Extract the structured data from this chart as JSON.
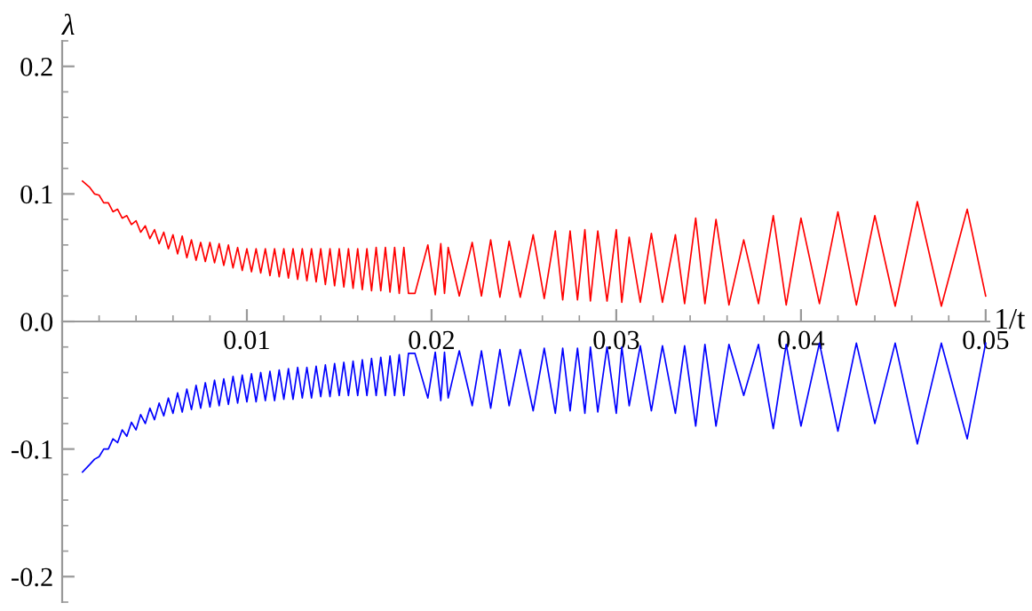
{
  "chart_data": {
    "type": "line",
    "xlabel": "1/t",
    "ylabel": "λ",
    "x": [
      0.0011,
      0.0015,
      0.00175,
      0.002,
      0.00225,
      0.0025,
      0.00275,
      0.003,
      0.00325,
      0.0035,
      0.00375,
      0.004,
      0.00425,
      0.0045,
      0.00475,
      0.005,
      0.00525,
      0.0055,
      0.00575,
      0.006,
      0.00625,
      0.0065,
      0.00675,
      0.007,
      0.00725,
      0.0075,
      0.00775,
      0.008,
      0.00825,
      0.0085,
      0.00875,
      0.009,
      0.00925,
      0.0095,
      0.00975,
      0.01,
      0.01025,
      0.0105,
      0.01075,
      0.011,
      0.01125,
      0.0115,
      0.01175,
      0.012,
      0.01225,
      0.0125,
      0.01275,
      0.013,
      0.01325,
      0.0135,
      0.01375,
      0.014,
      0.01425,
      0.0145,
      0.01475,
      0.015,
      0.01525,
      0.0155,
      0.01575,
      0.016,
      0.01625,
      0.0165,
      0.01675,
      0.017,
      0.01725,
      0.0175,
      0.01775,
      0.018,
      0.01825,
      0.0185,
      0.01875,
      0.0191,
      0.0198,
      0.0202,
      0.0205,
      0.0207,
      0.0209,
      0.0215,
      0.0222,
      0.0227,
      0.0232,
      0.0237,
      0.0242,
      0.0248,
      0.0255,
      0.0261,
      0.0267,
      0.0271,
      0.0275,
      0.0279,
      0.0283,
      0.0286,
      0.029,
      0.0295,
      0.03,
      0.0303,
      0.0307,
      0.0313,
      0.0319,
      0.0325,
      0.0332,
      0.0337,
      0.0343,
      0.0348,
      0.0354,
      0.0361,
      0.0369,
      0.0377,
      0.0385,
      0.0392,
      0.04,
      0.041,
      0.042,
      0.043,
      0.044,
      0.0451,
      0.0463,
      0.0476,
      0.049,
      0.05
    ],
    "series": [
      {
        "color": "#ff0000",
        "values": [
          0.11,
          0.105,
          0.1,
          0.099,
          0.093,
          0.093,
          0.086,
          0.088,
          0.081,
          0.083,
          0.076,
          0.079,
          0.07,
          0.075,
          0.065,
          0.072,
          0.061,
          0.07,
          0.057,
          0.068,
          0.053,
          0.067,
          0.05,
          0.064,
          0.048,
          0.062,
          0.047,
          0.062,
          0.046,
          0.061,
          0.044,
          0.06,
          0.042,
          0.058,
          0.04,
          0.057,
          0.039,
          0.057,
          0.038,
          0.057,
          0.036,
          0.057,
          0.035,
          0.057,
          0.034,
          0.057,
          0.033,
          0.057,
          0.032,
          0.057,
          0.031,
          0.057,
          0.029,
          0.057,
          0.028,
          0.057,
          0.027,
          0.057,
          0.026,
          0.057,
          0.025,
          0.057,
          0.024,
          0.058,
          0.024,
          0.058,
          0.023,
          0.058,
          0.022,
          0.058,
          0.022,
          0.022,
          0.06,
          0.021,
          0.061,
          0.022,
          0.058,
          0.02,
          0.062,
          0.02,
          0.064,
          0.019,
          0.063,
          0.019,
          0.068,
          0.018,
          0.071,
          0.017,
          0.071,
          0.017,
          0.072,
          0.016,
          0.071,
          0.016,
          0.072,
          0.015,
          0.066,
          0.015,
          0.069,
          0.015,
          0.068,
          0.014,
          0.081,
          0.014,
          0.08,
          0.013,
          0.064,
          0.014,
          0.083,
          0.013,
          0.081,
          0.014,
          0.086,
          0.013,
          0.083,
          0.012,
          0.094,
          0.012,
          0.088,
          0.02
        ]
      },
      {
        "color": "#0000ff",
        "values": [
          -0.118,
          -0.112,
          -0.108,
          -0.106,
          -0.1,
          -0.1,
          -0.092,
          -0.095,
          -0.085,
          -0.09,
          -0.079,
          -0.085,
          -0.073,
          -0.08,
          -0.068,
          -0.077,
          -0.064,
          -0.074,
          -0.06,
          -0.072,
          -0.056,
          -0.071,
          -0.053,
          -0.069,
          -0.05,
          -0.068,
          -0.048,
          -0.067,
          -0.046,
          -0.066,
          -0.045,
          -0.065,
          -0.043,
          -0.064,
          -0.042,
          -0.063,
          -0.041,
          -0.063,
          -0.04,
          -0.062,
          -0.039,
          -0.062,
          -0.038,
          -0.061,
          -0.037,
          -0.061,
          -0.036,
          -0.06,
          -0.036,
          -0.06,
          -0.035,
          -0.059,
          -0.034,
          -0.059,
          -0.033,
          -0.058,
          -0.032,
          -0.058,
          -0.031,
          -0.058,
          -0.03,
          -0.058,
          -0.029,
          -0.058,
          -0.028,
          -0.058,
          -0.027,
          -0.058,
          -0.026,
          -0.058,
          -0.025,
          -0.025,
          -0.06,
          -0.024,
          -0.062,
          -0.024,
          -0.06,
          -0.023,
          -0.066,
          -0.023,
          -0.068,
          -0.022,
          -0.066,
          -0.022,
          -0.07,
          -0.021,
          -0.072,
          -0.021,
          -0.07,
          -0.021,
          -0.072,
          -0.02,
          -0.071,
          -0.02,
          -0.072,
          -0.02,
          -0.066,
          -0.019,
          -0.07,
          -0.019,
          -0.072,
          -0.019,
          -0.082,
          -0.018,
          -0.082,
          -0.018,
          -0.058,
          -0.018,
          -0.084,
          -0.018,
          -0.082,
          -0.017,
          -0.086,
          -0.017,
          -0.08,
          -0.017,
          -0.096,
          -0.017,
          -0.092,
          -0.017
        ]
      }
    ],
    "xlim": [
      0,
      0.0502
    ],
    "ylim": [
      -0.22,
      0.22
    ],
    "xticks": [
      0.01,
      0.02,
      0.03,
      0.04,
      0.05
    ],
    "yticks": [
      -0.2,
      -0.1,
      {
        "value": 0.0,
        "label": "0.0"
      },
      0.1,
      0.2
    ],
    "grid": false,
    "legend": false,
    "marker": "none",
    "line_style": "solid"
  }
}
